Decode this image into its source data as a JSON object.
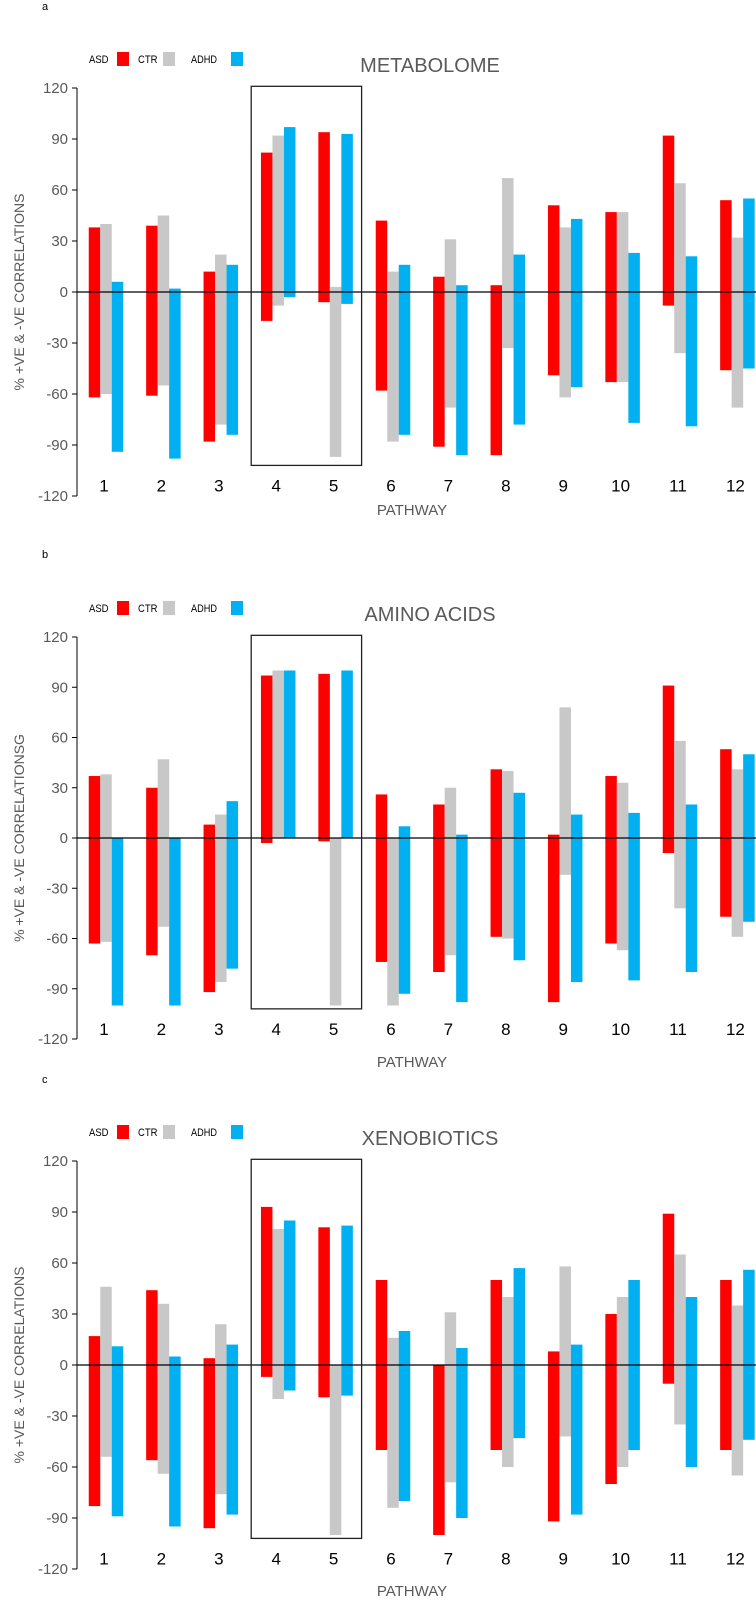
{
  "colors": {
    "ASD": "#ff0000",
    "CTR": "#c8c8c8",
    "ADHD": "#00b0f0",
    "axis": "#000000",
    "text": "#595959"
  },
  "chart_data": [
    {
      "panel_label": "a",
      "type": "bar",
      "subtype": "floating-range",
      "title": "METABOLOME",
      "xlabel": "PATHWAY",
      "ylabel": "% +VE & -VE CORRELATIONS",
      "ylim": [
        -120,
        120
      ],
      "yticks": [
        120,
        90,
        60,
        30,
        0,
        -30,
        -60,
        -90,
        -120
      ],
      "categories": [
        "1",
        "2",
        "3",
        "4",
        "5",
        "6",
        "7",
        "8",
        "9",
        "10",
        "11",
        "12"
      ],
      "legend": [
        "ASD",
        "CTR",
        "ADHD"
      ],
      "legend_position": "top-left",
      "highlight_box": [
        "4",
        "5"
      ],
      "series": [
        {
          "name": "ASD",
          "positive": [
            38,
            39,
            12,
            82,
            94,
            42,
            9,
            4,
            51,
            47,
            92,
            54
          ],
          "negative": [
            -62,
            -61,
            -88,
            -17,
            -6,
            -58,
            -91,
            -96,
            -49,
            -53,
            -8,
            -46
          ]
        },
        {
          "name": "CTR",
          "positive": [
            40,
            45,
            22,
            92,
            3,
            12,
            31,
            67,
            38,
            47,
            64,
            32
          ],
          "negative": [
            -60,
            -55,
            -78,
            -8,
            -97,
            -88,
            -68,
            -33,
            -62,
            -53,
            -36,
            -68
          ]
        },
        {
          "name": "ADHD",
          "positive": [
            6,
            2,
            16,
            97,
            93,
            16,
            4,
            22,
            43,
            23,
            21,
            55
          ],
          "negative": [
            -94,
            -98,
            -84,
            -3,
            -7,
            -84,
            -96,
            -78,
            -56,
            -77,
            -79,
            -45
          ]
        }
      ]
    },
    {
      "panel_label": "b",
      "type": "bar",
      "subtype": "floating-range",
      "title": "AMINO ACIDS",
      "xlabel": "PATHWAY",
      "ylabel": "% +VE & -VE CORRELATIONSG",
      "ylim": [
        -120,
        120
      ],
      "yticks": [
        120,
        90,
        60,
        30,
        0,
        -30,
        -60,
        -90,
        -120
      ],
      "categories": [
        "1",
        "2",
        "3",
        "4",
        "5",
        "6",
        "7",
        "8",
        "9",
        "10",
        "11",
        "12"
      ],
      "legend": [
        "ASD",
        "CTR",
        "ADHD"
      ],
      "legend_position": "top-left",
      "highlight_box": [
        "4",
        "5"
      ],
      "series": [
        {
          "name": "ASD",
          "positive": [
            37,
            30,
            8,
            97,
            98,
            26,
            20,
            41,
            2,
            37,
            91,
            53
          ],
          "negative": [
            -63,
            -70,
            -92,
            -3,
            -2,
            -74,
            -80,
            -59,
            -98,
            -63,
            -9,
            -47
          ]
        },
        {
          "name": "CTR",
          "positive": [
            38,
            47,
            14,
            100,
            0,
            0,
            30,
            40,
            78,
            33,
            58,
            41
          ],
          "negative": [
            -62,
            -53,
            -86,
            0,
            -100,
            -100,
            -70,
            -60,
            -22,
            -67,
            -42,
            -59
          ]
        },
        {
          "name": "ADHD",
          "positive": [
            0,
            0,
            22,
            100,
            100,
            7,
            2,
            27,
            14,
            15,
            20,
            50
          ],
          "negative": [
            -100,
            -100,
            -78,
            0,
            0,
            -93,
            -98,
            -73,
            -86,
            -85,
            -80,
            -50
          ]
        }
      ]
    },
    {
      "panel_label": "c",
      "type": "bar",
      "subtype": "floating-range",
      "title": "XENOBIOTICS",
      "xlabel": "PATHWAY",
      "ylabel": "% +VE & -VE CORRELATIONS",
      "ylim": [
        -120,
        120
      ],
      "yticks": [
        120,
        90,
        60,
        30,
        0,
        -30,
        -60,
        -90,
        -120
      ],
      "categories": [
        "1",
        "2",
        "3",
        "4",
        "5",
        "6",
        "7",
        "8",
        "9",
        "10",
        "11",
        "12"
      ],
      "legend": [
        "ASD",
        "CTR",
        "ADHD"
      ],
      "legend_position": "top-left",
      "highlight_box": [
        "4",
        "5"
      ],
      "series": [
        {
          "name": "ASD",
          "positive": [
            17,
            44,
            4,
            93,
            81,
            50,
            0,
            50,
            8,
            30,
            89,
            50
          ],
          "negative": [
            -83,
            -56,
            -96,
            -7,
            -19,
            -50,
            -100,
            -50,
            -92,
            -70,
            -11,
            -50
          ]
        },
        {
          "name": "CTR",
          "positive": [
            46,
            36,
            24,
            80,
            0,
            16,
            31,
            40,
            58,
            40,
            65,
            35
          ],
          "negative": [
            -54,
            -64,
            -76,
            -20,
            -100,
            -84,
            -69,
            -60,
            -42,
            -60,
            -35,
            -65
          ]
        },
        {
          "name": "ADHD",
          "positive": [
            11,
            5,
            12,
            85,
            82,
            20,
            10,
            57,
            12,
            50,
            40,
            56
          ],
          "negative": [
            -89,
            -95,
            -88,
            -15,
            -18,
            -80,
            -90,
            -43,
            -88,
            -50,
            -60,
            -44
          ]
        }
      ]
    }
  ]
}
